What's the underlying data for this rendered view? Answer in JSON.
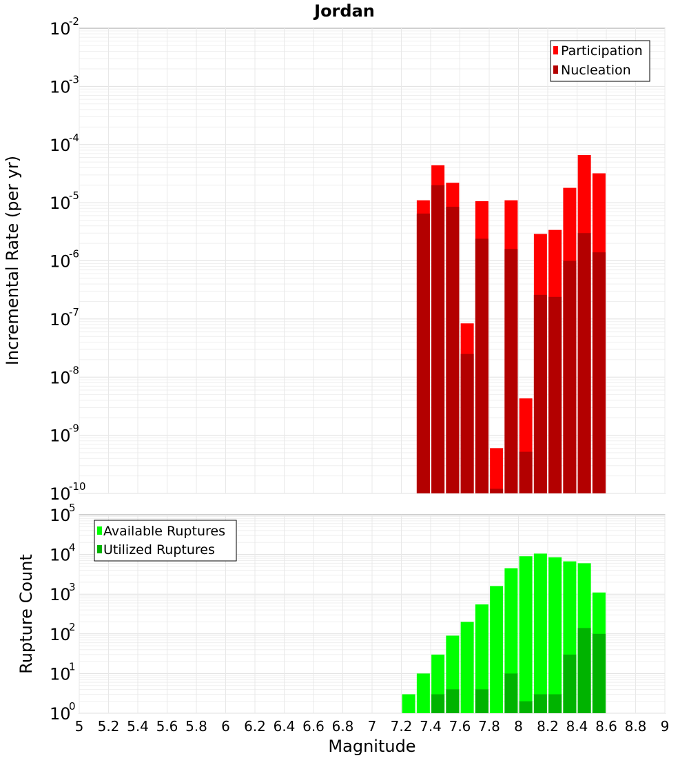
{
  "chart_data": [
    {
      "type": "bar",
      "title": "Jordan",
      "ylabel": "Incremental Rate (per yr)",
      "xlabel": "Magnitude",
      "yscale": "log",
      "ylim": [
        1e-10,
        0.01
      ],
      "xlim": [
        5,
        9
      ],
      "grid": true,
      "legend_position": "top-right",
      "colors": {
        "Participation": "#ff0000",
        "Nucleation": "#b30000"
      },
      "x": [
        7.35,
        7.45,
        7.55,
        7.65,
        7.75,
        7.85,
        7.95,
        8.05,
        8.15,
        8.25,
        8.35,
        8.45,
        8.55
      ],
      "series": [
        {
          "name": "Participation",
          "values": [
            1.1e-05,
            4.4e-05,
            2.2e-05,
            8.4e-08,
            1.06e-05,
            6e-10,
            1.1e-05,
            4.3e-09,
            2.9e-06,
            3.4e-06,
            1.8e-05,
            6.6e-05,
            3.2e-05
          ]
        },
        {
          "name": "Nucleation",
          "values": [
            6.5e-06,
            2e-05,
            8.5e-06,
            2.5e-08,
            2.4e-06,
            1.2e-10,
            1.6e-06,
            5.2e-10,
            2.6e-07,
            2.4e-07,
            1e-06,
            3e-06,
            1.4e-06
          ]
        }
      ]
    },
    {
      "type": "bar",
      "ylabel": "Rupture Count",
      "xlabel": "Magnitude",
      "yscale": "log",
      "ylim": [
        1,
        100000
      ],
      "xlim": [
        5,
        9
      ],
      "grid": true,
      "legend_position": "top-left",
      "colors": {
        "Available Ruptures": "#00ff00",
        "Utilized Ruptures": "#00b300"
      },
      "x": [
        7.15,
        7.25,
        7.35,
        7.45,
        7.55,
        7.65,
        7.75,
        7.85,
        7.95,
        8.05,
        8.15,
        8.25,
        8.35,
        8.45,
        8.55
      ],
      "series": [
        {
          "name": "Available Ruptures",
          "values": [
            1,
            3,
            10,
            30,
            90,
            200,
            550,
            1600,
            4500,
            9000,
            10500,
            8500,
            6700,
            6000,
            1100
          ]
        },
        {
          "name": "Utilized Ruptures",
          "values": [
            null,
            1,
            1,
            3,
            4,
            1,
            4,
            1,
            10,
            2,
            3,
            3,
            30,
            140,
            100
          ]
        }
      ]
    }
  ],
  "x_ticks": [
    "5",
    "5.2",
    "5.4",
    "5.6",
    "5.8",
    "6",
    "6.2",
    "6.4",
    "6.6",
    "6.8",
    "7",
    "7.2",
    "7.4",
    "7.6",
    "7.8",
    "8",
    "8.2",
    "8.4",
    "8.6",
    "8.8",
    "9"
  ]
}
